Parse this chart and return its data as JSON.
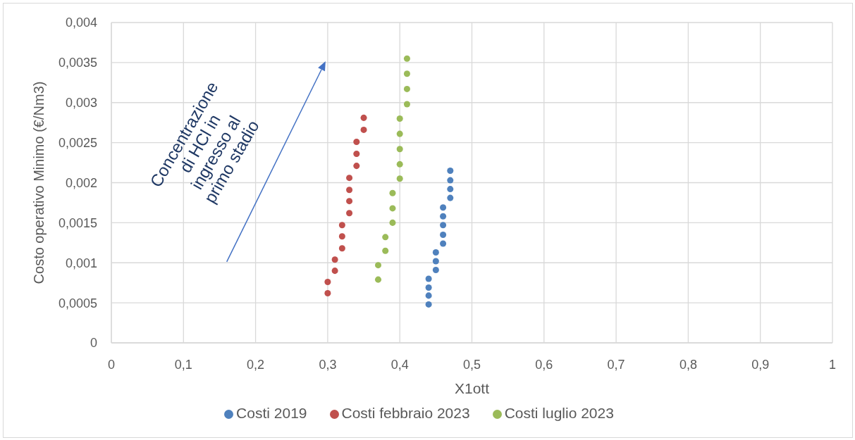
{
  "chart_data": {
    "type": "scatter",
    "xlabel": "X1ott",
    "ylabel": "Costo operativo Minimo (€/Nm3)",
    "annotations": [
      "Concentrazione di HCl in ingresso al primo stadio"
    ],
    "xlim": [
      0,
      1
    ],
    "xticks": [
      0,
      {
        "value": 0.1,
        "label": "0,1"
      },
      {
        "value": 0.2,
        "label": "0,2"
      },
      {
        "value": 0.3,
        "label": "0,3"
      },
      {
        "value": 0.4,
        "label": "0,4"
      },
      {
        "value": 0.5,
        "label": "0,5"
      },
      {
        "value": 0.6,
        "label": "0,6"
      },
      {
        "value": 0.7,
        "label": "0,7"
      },
      {
        "value": 0.8,
        "label": "0,8"
      },
      {
        "value": 0.9,
        "label": "0,9"
      },
      1
    ],
    "ylim": [
      0,
      0.004
    ],
    "yticks": [
      0,
      {
        "value": 0.0005,
        "label": "0,0005"
      },
      {
        "value": 0.001,
        "label": "0,001"
      },
      {
        "value": 0.0015,
        "label": "0,0015"
      },
      {
        "value": 0.002,
        "label": "0,002"
      },
      {
        "value": 0.0025,
        "label": "0,0025"
      },
      {
        "value": 0.003,
        "label": "0,003"
      },
      {
        "value": 0.0035,
        "label": "0,0035"
      },
      {
        "value": 0.004,
        "label": "0,004"
      }
    ],
    "grid": true,
    "legend": "bottom",
    "marker": "circle",
    "series": [
      {
        "name": "Costi 2019",
        "color": "#4f81bd",
        "x": [
          0.44,
          0.44,
          0.44,
          0.44,
          0.45,
          0.45,
          0.45,
          0.46,
          0.46,
          0.46,
          0.46,
          0.46,
          0.47,
          0.47,
          0.47,
          0.47
        ],
        "values": [
          0.00048,
          0.00059,
          0.00069,
          0.0008,
          0.00091,
          0.00102,
          0.00113,
          0.00124,
          0.00135,
          0.00147,
          0.00158,
          0.00169,
          0.00181,
          0.00192,
          0.00203,
          0.00215
        ]
      },
      {
        "name": "Costi febbraio 2023",
        "color": "#c0504d",
        "x": [
          0.3,
          0.3,
          0.31,
          0.31,
          0.32,
          0.32,
          0.32,
          0.33,
          0.33,
          0.33,
          0.33,
          0.34,
          0.34,
          0.34,
          0.35,
          0.35
        ],
        "values": [
          0.00062,
          0.00076,
          0.0009,
          0.00104,
          0.00118,
          0.00133,
          0.00147,
          0.00162,
          0.00177,
          0.00191,
          0.00206,
          0.00221,
          0.00236,
          0.00251,
          0.00266,
          0.00281
        ]
      },
      {
        "name": "Costi luglio 2023",
        "color": "#9bbb59",
        "x": [
          0.37,
          0.37,
          0.38,
          0.38,
          0.39,
          0.39,
          0.39,
          0.4,
          0.4,
          0.4,
          0.4,
          0.4,
          0.41,
          0.41,
          0.41,
          0.41
        ],
        "values": [
          0.00079,
          0.00097,
          0.00115,
          0.00132,
          0.0015,
          0.00168,
          0.00187,
          0.00205,
          0.00223,
          0.00242,
          0.00261,
          0.0028,
          0.00298,
          0.00317,
          0.00336,
          0.00355
        ]
      }
    ]
  }
}
